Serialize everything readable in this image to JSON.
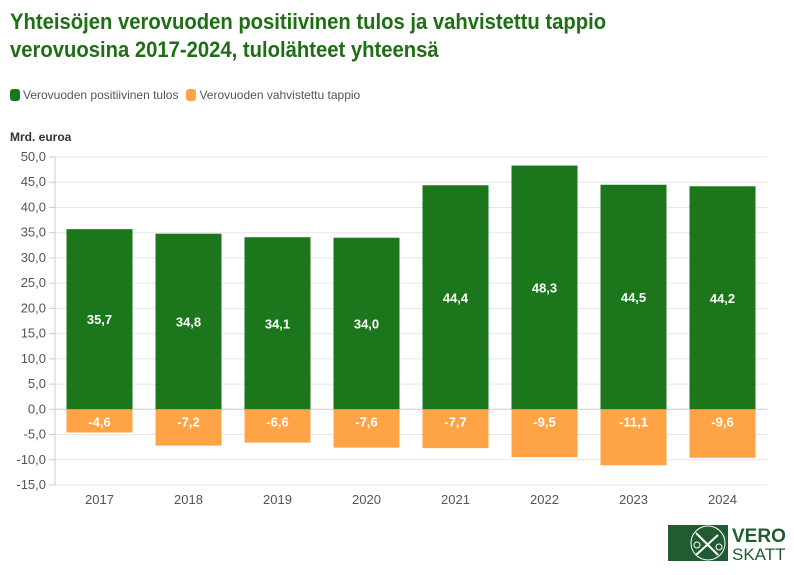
{
  "title": "Yhteisöjen verovuoden positiivinen tulos ja vahvistettu tappio verovuosina 2017-2024, tulolähteet yhteensä",
  "logo": {
    "text_top": "VERO",
    "text_bottom": "SKATT",
    "color": "#1f5c32"
  },
  "chart_data": {
    "type": "bar",
    "ylabel": "Mrd. euroa",
    "ylim": [
      -15,
      50
    ],
    "yticks": [
      -15,
      -10,
      -5,
      0,
      5,
      10,
      15,
      20,
      25,
      30,
      35,
      40,
      45,
      50
    ],
    "grid": true,
    "legend_position": "top-left",
    "categories": [
      "2017",
      "2018",
      "2019",
      "2020",
      "2021",
      "2022",
      "2023",
      "2024"
    ],
    "series": [
      {
        "name": "Verovuoden positiivinen tulos",
        "color": "#1c771c",
        "values": [
          35.7,
          34.8,
          34.1,
          34.0,
          44.4,
          48.3,
          44.5,
          44.2
        ]
      },
      {
        "name": "Verovuoden vahvistettu tappio",
        "color": "#ffa347",
        "values": [
          -4.6,
          -7.2,
          -6.6,
          -7.6,
          -7.7,
          -9.5,
          -11.1,
          -9.6
        ]
      }
    ]
  }
}
